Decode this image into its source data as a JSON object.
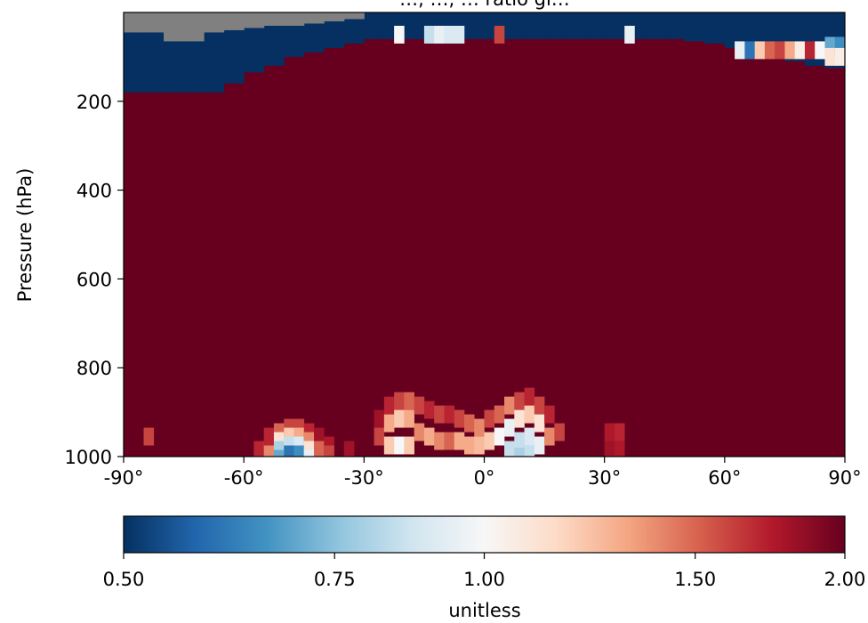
{
  "chart_data": {
    "type": "heatmap",
    "title": "…, …, … ratio gl…",
    "ylabel": "Pressure (hPa)",
    "xlabel": "",
    "x_ticks": [
      -90,
      -60,
      -30,
      0,
      30,
      60,
      90
    ],
    "x_tick_labels": [
      "-90°",
      "-60°",
      "-30°",
      "0°",
      "30°",
      "60°",
      "90°"
    ],
    "y_ticks": [
      200,
      400,
      600,
      800,
      1000
    ],
    "y_tick_labels": [
      "200",
      "400",
      "600",
      "800",
      "1000"
    ],
    "xlim": [
      -90,
      90
    ],
    "ylim": [
      1000,
      0
    ],
    "missing_color": "#808080",
    "background_value": 2.0,
    "colorbar": {
      "label": "unitless",
      "min": 0.5,
      "max": 2.0,
      "scale": "log",
      "ticks": [
        0.5,
        0.75,
        1.0,
        1.5,
        2.0
      ],
      "tick_labels": [
        "0.50",
        "0.75",
        "1.00",
        "1.50",
        "2.00"
      ],
      "colormap": [
        "#053061",
        "#2166ac",
        "#4393c3",
        "#92c5de",
        "#d1e5f0",
        "#f7f7f7",
        "#fddbc7",
        "#f4a582",
        "#d6604d",
        "#b2182b",
        "#67001f"
      ]
    },
    "tropopause_upper_low_ratio": {
      "lat_edges": [
        -90,
        -85,
        -80,
        -75,
        -70,
        -65,
        -60,
        -55,
        -50,
        -45,
        -40,
        -35,
        -30,
        -25,
        -20,
        -15,
        -10,
        -5,
        0,
        5,
        10,
        15,
        20,
        25,
        30,
        35,
        40,
        45,
        50,
        55,
        60,
        65,
        70,
        75,
        80,
        85,
        90
      ],
      "bottom_pressure": [
        180,
        180,
        180,
        180,
        180,
        160,
        135,
        120,
        100,
        90,
        80,
        70,
        60,
        60,
        60,
        60,
        60,
        60,
        60,
        60,
        60,
        60,
        60,
        60,
        60,
        60,
        60,
        60,
        65,
        70,
        80,
        90,
        100,
        110,
        120,
        125
      ]
    },
    "missing_top": {
      "lat_edges": [
        -90,
        -85,
        -80,
        -75,
        -70,
        -65,
        -60,
        -55,
        -50,
        -45,
        -40,
        -35,
        -30
      ],
      "bottom_pressure": [
        45,
        45,
        65,
        65,
        45,
        40,
        35,
        30,
        30,
        25,
        20,
        15
      ]
    },
    "cells": [
      {
        "lat": -83.75,
        "p": 955,
        "v": 1.6
      },
      {
        "lat": -56.25,
        "p": 985,
        "v": 1.7
      },
      {
        "lat": -53.75,
        "p": 985,
        "v": 1.4
      },
      {
        "lat": -53.75,
        "p": 955,
        "v": 1.7
      },
      {
        "lat": -51.25,
        "p": 945,
        "v": 1.5
      },
      {
        "lat": -51.25,
        "p": 965,
        "v": 1.1
      },
      {
        "lat": -51.25,
        "p": 985,
        "v": 0.8
      },
      {
        "lat": -51.25,
        "p": 1005,
        "v": 0.7
      },
      {
        "lat": -48.75,
        "p": 935,
        "v": 1.6
      },
      {
        "lat": -48.75,
        "p": 955,
        "v": 1.2
      },
      {
        "lat": -48.75,
        "p": 975,
        "v": 0.85
      },
      {
        "lat": -48.75,
        "p": 995,
        "v": 0.6
      },
      {
        "lat": -46.25,
        "p": 935,
        "v": 1.6
      },
      {
        "lat": -46.25,
        "p": 955,
        "v": 1.3
      },
      {
        "lat": -46.25,
        "p": 975,
        "v": 0.9
      },
      {
        "lat": -46.25,
        "p": 995,
        "v": 0.65
      },
      {
        "lat": -43.75,
        "p": 945,
        "v": 1.7
      },
      {
        "lat": -43.75,
        "p": 965,
        "v": 1.4
      },
      {
        "lat": -43.75,
        "p": 985,
        "v": 1.1
      },
      {
        "lat": -43.75,
        "p": 1005,
        "v": 0.95
      },
      {
        "lat": -41.25,
        "p": 955,
        "v": 1.8
      },
      {
        "lat": -41.25,
        "p": 985,
        "v": 1.5
      },
      {
        "lat": -38.75,
        "p": 975,
        "v": 1.75
      },
      {
        "lat": -38.75,
        "p": 995,
        "v": 1.6
      },
      {
        "lat": -33.75,
        "p": 985,
        "v": 1.8
      },
      {
        "lat": -26.25,
        "p": 915,
        "v": 1.8
      },
      {
        "lat": -26.25,
        "p": 955,
        "v": 1.6
      },
      {
        "lat": -23.75,
        "p": 885,
        "v": 1.7
      },
      {
        "lat": -23.75,
        "p": 925,
        "v": 1.3
      },
      {
        "lat": -23.75,
        "p": 975,
        "v": 1.2
      },
      {
        "lat": -21.25,
        "p": 875,
        "v": 1.6
      },
      {
        "lat": -21.25,
        "p": 915,
        "v": 1.2
      },
      {
        "lat": -21.25,
        "p": 975,
        "v": 1.0
      },
      {
        "lat": -18.75,
        "p": 875,
        "v": 1.5
      },
      {
        "lat": -18.75,
        "p": 915,
        "v": 1.3
      },
      {
        "lat": -18.75,
        "p": 975,
        "v": 1.2
      },
      {
        "lat": -16.25,
        "p": 885,
        "v": 1.6
      },
      {
        "lat": -16.25,
        "p": 945,
        "v": 1.4
      },
      {
        "lat": -13.75,
        "p": 895,
        "v": 1.7
      },
      {
        "lat": -13.75,
        "p": 955,
        "v": 1.3
      },
      {
        "lat": -11.25,
        "p": 905,
        "v": 1.6
      },
      {
        "lat": -11.25,
        "p": 965,
        "v": 1.4
      },
      {
        "lat": -8.75,
        "p": 905,
        "v": 1.7
      },
      {
        "lat": -8.75,
        "p": 965,
        "v": 1.5
      },
      {
        "lat": -6.25,
        "p": 915,
        "v": 1.6
      },
      {
        "lat": -6.25,
        "p": 965,
        "v": 1.3
      },
      {
        "lat": -3.75,
        "p": 925,
        "v": 1.5
      },
      {
        "lat": -3.75,
        "p": 975,
        "v": 1.3
      },
      {
        "lat": -1.25,
        "p": 935,
        "v": 1.4
      },
      {
        "lat": -1.25,
        "p": 975,
        "v": 1.25
      },
      {
        "lat": 1.25,
        "p": 915,
        "v": 1.6
      },
      {
        "lat": 1.25,
        "p": 965,
        "v": 1.2
      },
      {
        "lat": 3.75,
        "p": 905,
        "v": 1.5
      },
      {
        "lat": 3.75,
        "p": 955,
        "v": 1.0
      },
      {
        "lat": 6.25,
        "p": 885,
        "v": 1.4
      },
      {
        "lat": 6.25,
        "p": 935,
        "v": 0.95
      },
      {
        "lat": 6.25,
        "p": 985,
        "v": 0.85
      },
      {
        "lat": 8.75,
        "p": 875,
        "v": 1.6
      },
      {
        "lat": 8.75,
        "p": 915,
        "v": 1.1
      },
      {
        "lat": 8.75,
        "p": 965,
        "v": 0.85
      },
      {
        "lat": 8.75,
        "p": 1000,
        "v": 0.8
      },
      {
        "lat": 11.25,
        "p": 865,
        "v": 1.7
      },
      {
        "lat": 11.25,
        "p": 905,
        "v": 1.2
      },
      {
        "lat": 11.25,
        "p": 955,
        "v": 0.9
      },
      {
        "lat": 11.25,
        "p": 995,
        "v": 0.85
      },
      {
        "lat": 13.75,
        "p": 885,
        "v": 1.6
      },
      {
        "lat": 13.75,
        "p": 925,
        "v": 1.1
      },
      {
        "lat": 13.75,
        "p": 975,
        "v": 0.95
      },
      {
        "lat": 16.25,
        "p": 905,
        "v": 1.7
      },
      {
        "lat": 16.25,
        "p": 955,
        "v": 1.4
      },
      {
        "lat": 18.75,
        "p": 945,
        "v": 1.6
      },
      {
        "lat": 31.25,
        "p": 945,
        "v": 1.75
      },
      {
        "lat": 31.25,
        "p": 985,
        "v": 1.8
      },
      {
        "lat": 33.75,
        "p": 945,
        "v": 1.7
      },
      {
        "lat": 33.75,
        "p": 985,
        "v": 1.75
      }
    ],
    "upper_cells": [
      {
        "lat": -21.25,
        "p": 50,
        "v": 1.0
      },
      {
        "lat": -13.75,
        "p": 50,
        "v": 0.85
      },
      {
        "lat": -11.25,
        "p": 50,
        "v": 0.95
      },
      {
        "lat": -8.75,
        "p": 50,
        "v": 0.9
      },
      {
        "lat": -6.25,
        "p": 50,
        "v": 0.9
      },
      {
        "lat": 3.75,
        "p": 50,
        "v": 1.6
      },
      {
        "lat": 36.25,
        "p": 50,
        "v": 0.95
      },
      {
        "lat": 63.75,
        "p": 85,
        "v": 0.95
      },
      {
        "lat": 66.25,
        "p": 85,
        "v": 0.6
      },
      {
        "lat": 68.75,
        "p": 85,
        "v": 1.2
      },
      {
        "lat": 71.25,
        "p": 85,
        "v": 1.5
      },
      {
        "lat": 73.75,
        "p": 85,
        "v": 1.6
      },
      {
        "lat": 76.25,
        "p": 85,
        "v": 1.3
      },
      {
        "lat": 78.75,
        "p": 85,
        "v": 1.05
      },
      {
        "lat": 81.25,
        "p": 85,
        "v": 1.7
      },
      {
        "lat": 83.75,
        "p": 85,
        "v": 1.0
      },
      {
        "lat": 86.25,
        "p": 75,
        "v": 0.7
      },
      {
        "lat": 86.25,
        "p": 100,
        "v": 1.1
      },
      {
        "lat": 88.75,
        "p": 75,
        "v": 0.65
      },
      {
        "lat": 88.75,
        "p": 100,
        "v": 1.05
      }
    ]
  }
}
